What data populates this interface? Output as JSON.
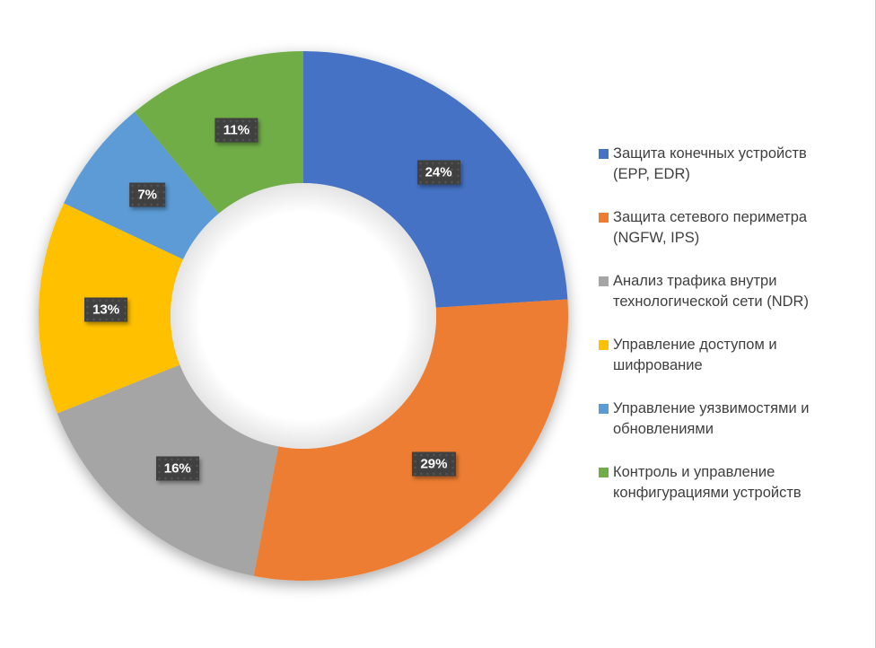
{
  "chart_data": {
    "type": "pie",
    "subtype": "donut",
    "title": "",
    "categories": [
      "Защита конечных устройств (EPP, EDR)",
      "Защита сетевого периметра (NGFW, IPS)",
      "Анализ трафика внутри технологической сети (NDR)",
      "Управление доступом и шифрование",
      "Управление уязвимостями и обновлениями",
      "Контроль и управление конфигурациями устройств"
    ],
    "values": [
      24,
      29,
      16,
      13,
      7,
      11
    ],
    "unit": "%",
    "data_labels": [
      "24%",
      "29%",
      "16%",
      "13%",
      "7%",
      "11%"
    ],
    "colors": [
      "#4472C4",
      "#ED7D31",
      "#A5A5A5",
      "#FFC000",
      "#5B9BD5",
      "#70AD47"
    ],
    "start_angle_deg": 0,
    "direction": "clockwise",
    "donut_hole_ratio": 0.5,
    "legend_position": "right"
  },
  "legend": {
    "items": [
      {
        "lines": [
          "Защита конечных устройств",
          "(EPP, EDR)"
        ],
        "color": "#4472C4"
      },
      {
        "lines": [
          "Защита сетевого периметра",
          "(NGFW, IPS)"
        ],
        "color": "#ED7D31"
      },
      {
        "lines": [
          "Анализ трафика внутри",
          "технологической сети (NDR)"
        ],
        "color": "#A5A5A5"
      },
      {
        "lines": [
          "Управление доступом и",
          "шифрование"
        ],
        "color": "#FFC000"
      },
      {
        "lines": [
          "Управление уязвимостями и",
          "обновлениями"
        ],
        "color": "#5B9BD5"
      },
      {
        "lines": [
          "Контроль и управление",
          "конфигурациями устройств"
        ],
        "color": "#70AD47"
      }
    ]
  },
  "style": {
    "background": "#FFFFFF",
    "right_border": "#C9C9C9",
    "label_bg": "#404040",
    "label_text": "#FFFFFF",
    "legend_text": "#3F3F3F"
  }
}
